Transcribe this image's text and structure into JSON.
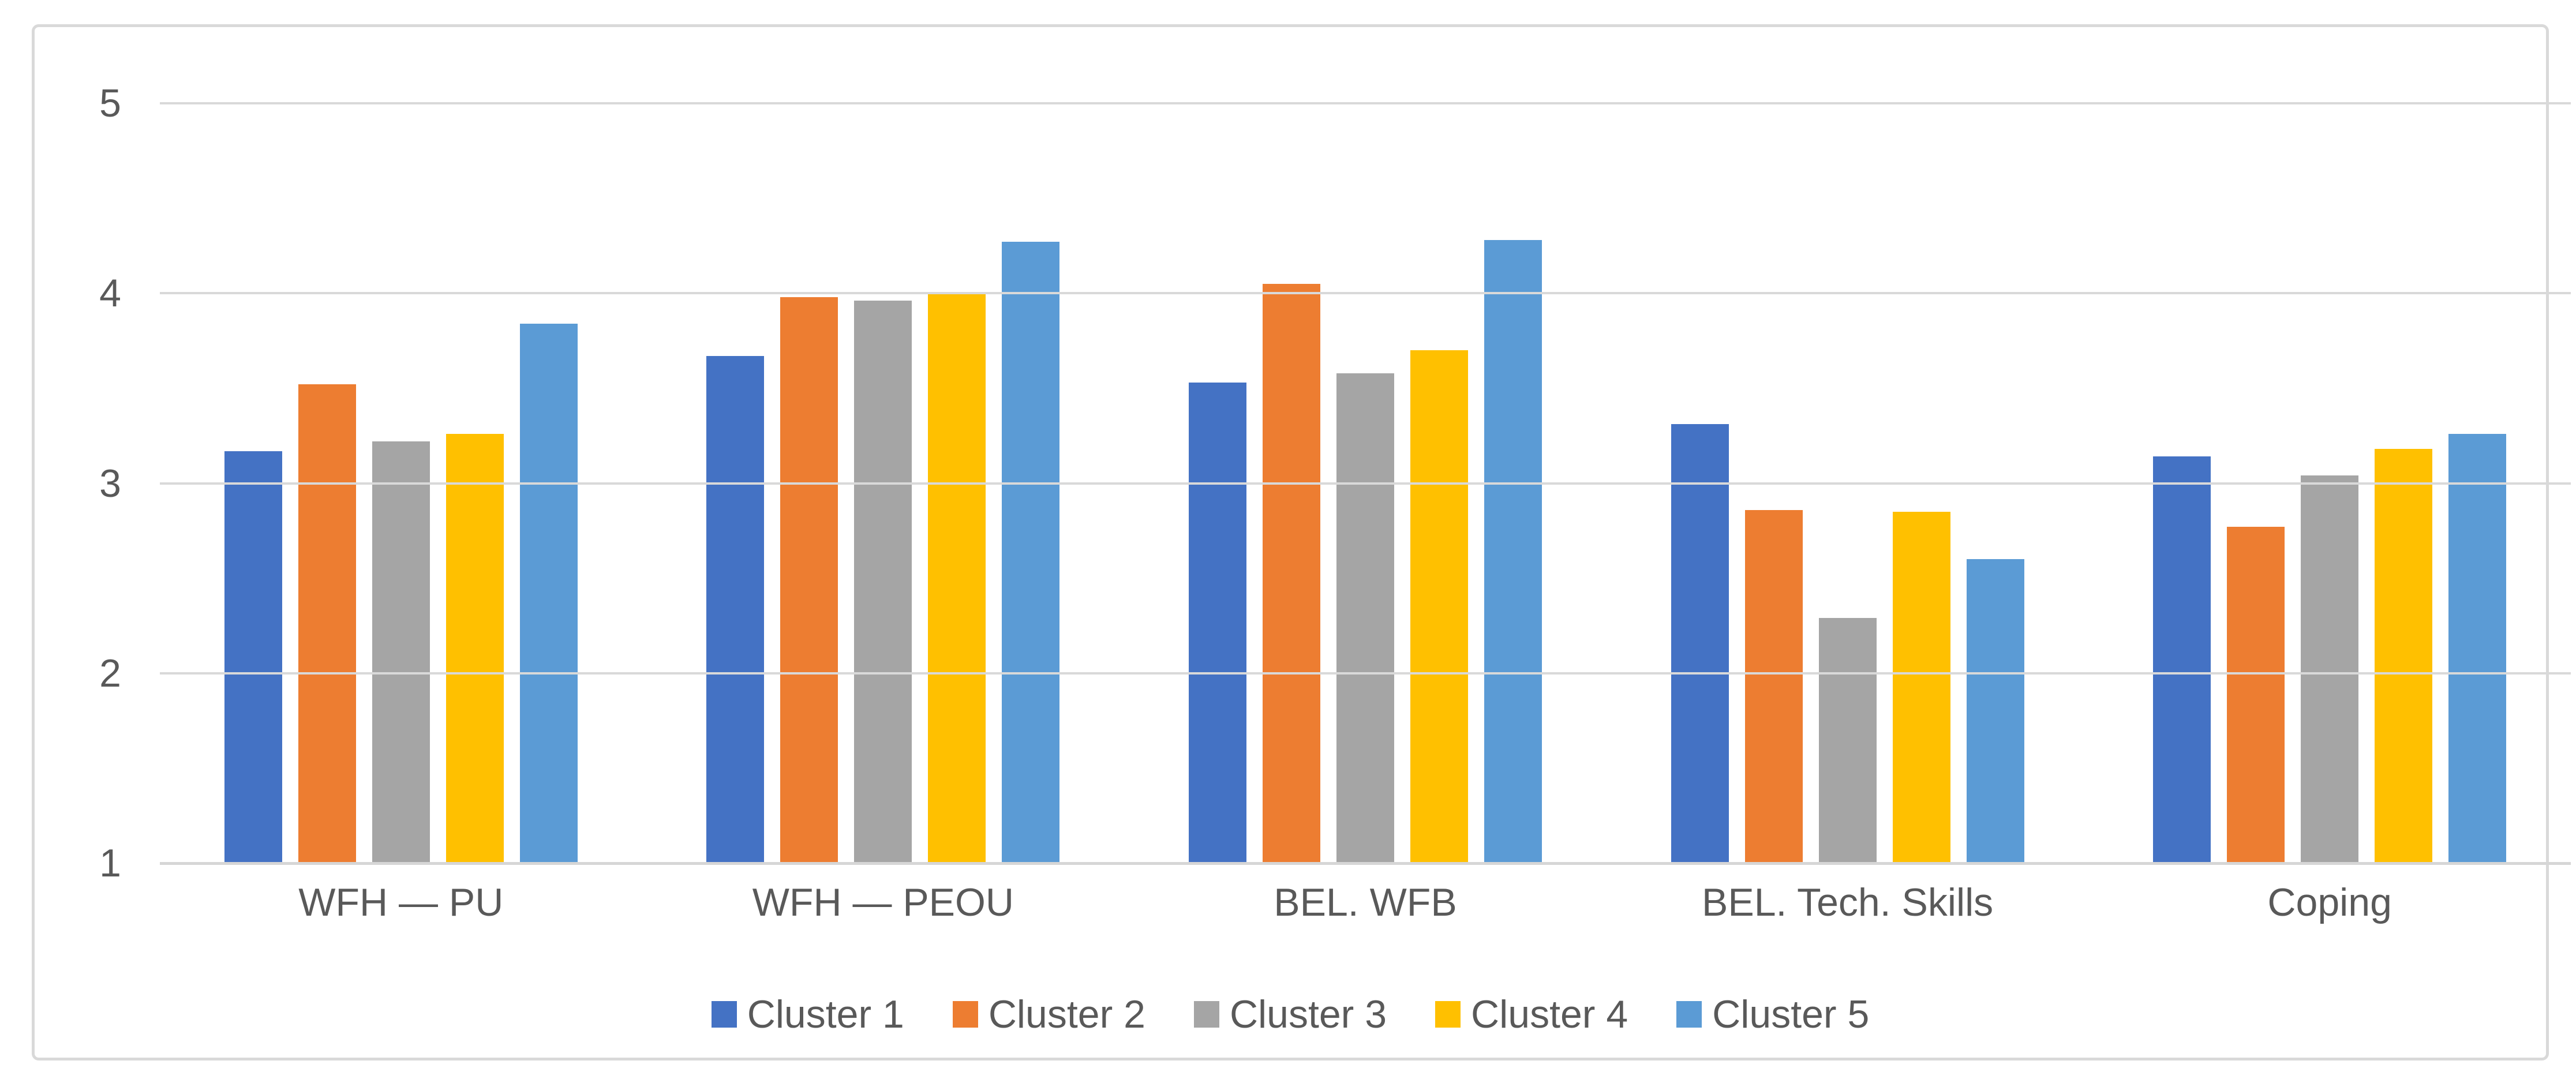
{
  "chart_data": {
    "type": "bar",
    "title": "",
    "categories": [
      "WFH — PU",
      "WFH — PEOU",
      "BEL. WFB",
      "BEL. Tech. Skills",
      "Coping"
    ],
    "series": [
      {
        "name": "Cluster 1",
        "color": "#4472C4",
        "values": [
          3.17,
          3.67,
          3.53,
          3.31,
          3.14
        ]
      },
      {
        "name": "Cluster 2",
        "color": "#ED7D31",
        "values": [
          3.52,
          3.98,
          4.05,
          2.86,
          2.77
        ]
      },
      {
        "name": "Cluster 3",
        "color": "#A5A5A5",
        "values": [
          3.22,
          3.96,
          3.58,
          2.29,
          3.04
        ]
      },
      {
        "name": "Cluster 4",
        "color": "#FFC000",
        "values": [
          3.26,
          4.0,
          3.7,
          2.85,
          3.18
        ]
      },
      {
        "name": "Cluster 5",
        "color": "#5B9BD5",
        "values": [
          3.84,
          4.27,
          4.28,
          2.6,
          3.26
        ]
      }
    ],
    "y_axis": {
      "min": 1,
      "max": 5,
      "ticks": [
        5,
        4,
        3,
        2,
        1
      ]
    },
    "grid": true,
    "legend_position": "bottom",
    "legend_labels": [
      "Cluster 1",
      "Cluster 2",
      "Cluster 3",
      "Cluster 4",
      "Cluster 5"
    ]
  },
  "styles": {
    "gridline_color": "#D9D9D9",
    "axis_line_color": "#D6D6D6",
    "text_color": "#595959",
    "frame_border_color": "#D9D9D9",
    "background": "#FFFFFF"
  }
}
